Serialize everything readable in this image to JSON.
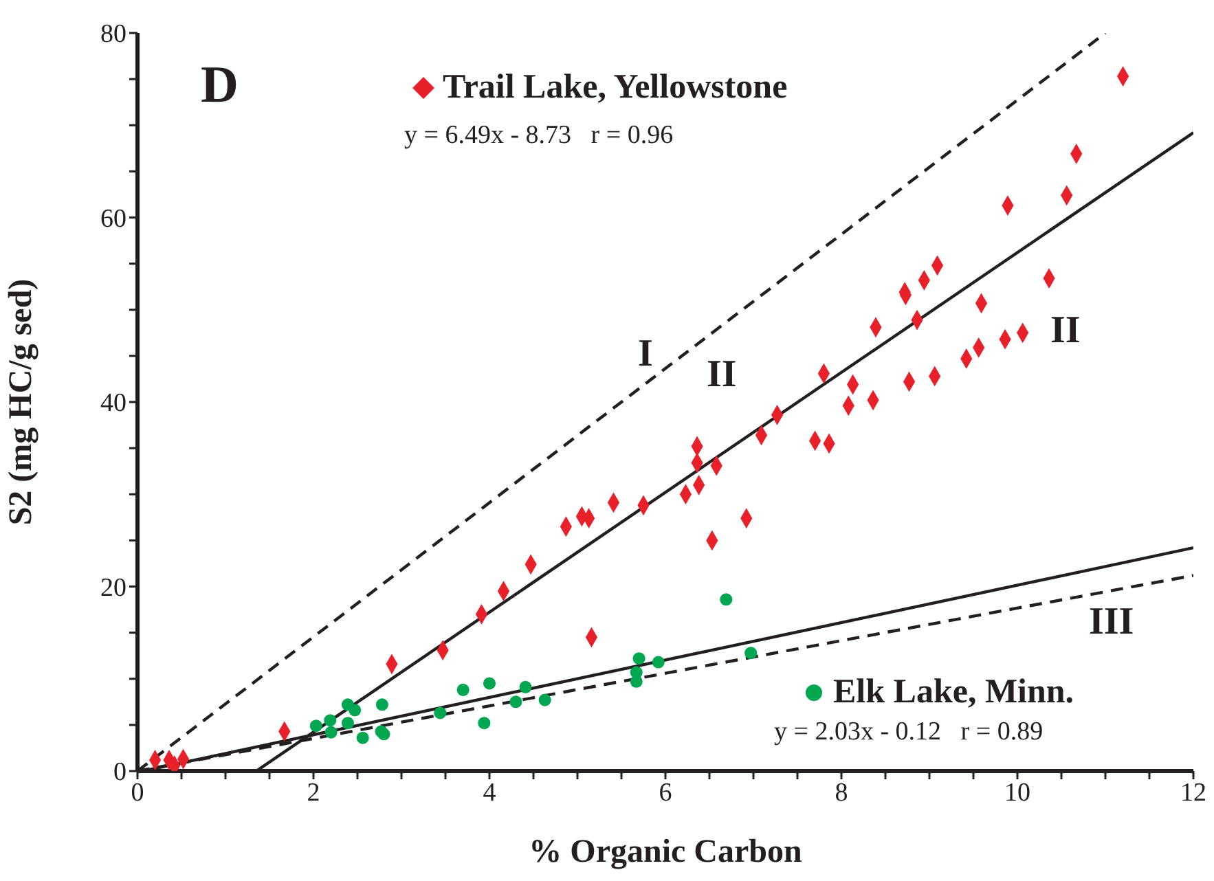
{
  "chart_data": {
    "type": "scatter",
    "xlabel": "% Organic Carbon",
    "ylabel": "S2 (mg HC/g sed)",
    "xlim": [
      0,
      12
    ],
    "ylim": [
      0,
      80
    ],
    "xticks": [
      0,
      {
        "value": 0.5,
        "label": null
      },
      {
        "value": 1,
        "label": null
      },
      {
        "value": 1.5,
        "label": null
      },
      2,
      {
        "value": 2.5,
        "label": null
      },
      {
        "value": 3,
        "label": null
      },
      {
        "value": 3.5,
        "label": null
      },
      4,
      {
        "value": 4.5,
        "label": null
      },
      {
        "value": 5,
        "label": null
      },
      {
        "value": 5.5,
        "label": null
      },
      6,
      {
        "value": 6.5,
        "label": null
      },
      {
        "value": 7,
        "label": null
      },
      {
        "value": 7.5,
        "label": null
      },
      8,
      {
        "value": 8.5,
        "label": null
      },
      {
        "value": 9,
        "label": null
      },
      {
        "value": 9.5,
        "label": null
      },
      10,
      {
        "value": 10.5,
        "label": null
      },
      {
        "value": 11,
        "label": null
      },
      {
        "value": 11.5,
        "label": null
      },
      12
    ],
    "yticks": [
      0,
      {
        "value": 5,
        "label": null
      },
      {
        "value": 10,
        "label": null
      },
      {
        "value": 15,
        "label": null
      },
      20,
      {
        "value": 25,
        "label": null
      },
      {
        "value": 30,
        "label": null
      },
      {
        "value": 35,
        "label": null
      },
      40,
      {
        "value": 45,
        "label": null
      },
      {
        "value": 50,
        "label": null
      },
      {
        "value": 55,
        "label": null
      },
      60,
      {
        "value": 65,
        "label": null
      },
      {
        "value": 70,
        "label": null
      },
      {
        "value": 75,
        "label": null
      },
      80
    ],
    "legend": "top",
    "series": [
      {
        "name": "Trail Lake, Yellowstone",
        "marker": "diamond",
        "color": "#e8202a",
        "x": [
          0.2,
          0.36,
          0.42,
          0.52,
          1.67,
          2.89,
          3.47,
          3.91,
          4.16,
          4.47,
          4.87,
          5.05,
          5.13,
          5.16,
          5.41,
          5.75,
          6.23,
          6.38,
          6.36,
          6.36,
          6.58,
          6.53,
          6.92,
          7.09,
          7.27,
          7.7,
          7.86,
          7.8,
          8.08,
          8.13,
          8.36,
          8.39,
          8.72,
          8.73,
          8.94,
          9.09,
          8.86,
          8.77,
          9.06,
          9.42,
          9.56,
          9.59,
          9.86,
          10.06,
          9.89,
          10.36,
          10.56,
          10.67,
          11.2
        ],
        "values": [
          1.2,
          1.2,
          0.6,
          1.3,
          4.3,
          11.6,
          13.1,
          17.0,
          19.5,
          22.4,
          26.5,
          27.6,
          27.4,
          14.5,
          29.1,
          28.8,
          30.0,
          31.0,
          33.4,
          35.2,
          33.1,
          25.0,
          27.4,
          36.4,
          38.6,
          35.8,
          35.5,
          43.1,
          39.6,
          41.9,
          40.2,
          48.1,
          51.9,
          51.6,
          53.2,
          54.8,
          48.9,
          42.2,
          42.8,
          44.7,
          45.9,
          50.7,
          46.8,
          47.5,
          61.3,
          53.4,
          62.4,
          66.9,
          75.3
        ]
      },
      {
        "name": "Elk Lake, Minn.",
        "marker": "circle",
        "color": "#00a651",
        "x": [
          2.03,
          2.19,
          2.2,
          2.39,
          2.47,
          2.39,
          2.56,
          2.78,
          2.77,
          2.8,
          3.44,
          3.7,
          3.94,
          4.0,
          4.3,
          4.41,
          4.63,
          5.7,
          5.67,
          5.67,
          5.92,
          6.69,
          6.97
        ],
        "values": [
          4.9,
          5.5,
          4.2,
          7.2,
          6.6,
          5.2,
          3.6,
          7.2,
          4.3,
          4.0,
          6.3,
          8.8,
          5.2,
          9.5,
          7.5,
          9.1,
          7.7,
          12.2,
          10.7,
          9.7,
          11.8,
          18.6,
          12.8
        ]
      },
      {
        "type": "line",
        "line_style": "solid",
        "color": "#231f20",
        "x": [
          1.35,
          12
        ],
        "values": [
          0,
          69.2
        ]
      },
      {
        "type": "line",
        "line_style": "solid",
        "color": "#231f20",
        "x": [
          0.06,
          12
        ],
        "values": [
          0,
          24.2
        ]
      },
      {
        "type": "line",
        "line_style": "dashed",
        "color": "#231f20",
        "x": [
          0,
          11
        ],
        "values": [
          0,
          80
        ]
      },
      {
        "type": "line",
        "line_style": "dashed",
        "color": "#231f20",
        "x": [
          0,
          12
        ],
        "values": [
          0,
          21.2
        ]
      }
    ],
    "annotations": [
      "D",
      "y = 6.49x - 8.73   r = 0.96",
      "y = 2.03x - 0.12   r = 0.89",
      "I",
      "II",
      "II",
      "III"
    ]
  }
}
